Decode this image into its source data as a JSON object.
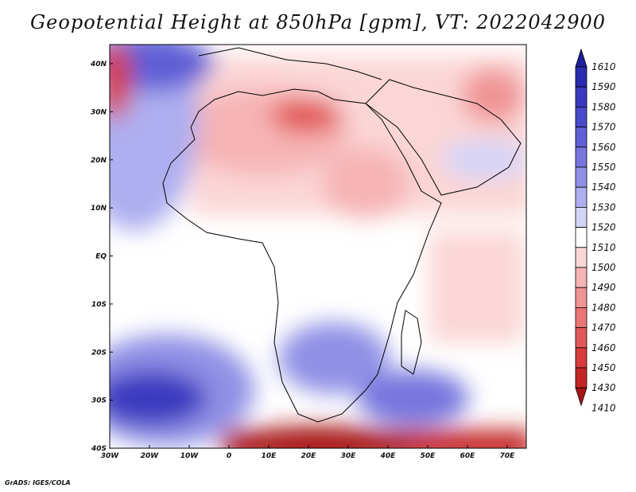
{
  "title": "Geopotential Height at 850hPa [gpm], VT: 2022042900",
  "credit": "GrADS: IGES/COLA",
  "map": {
    "lat_labels": [
      "40N",
      "30N",
      "20N",
      "10N",
      "EQ",
      "10S",
      "20S",
      "30S",
      "40S"
    ],
    "lon_labels": [
      "30W",
      "20W",
      "10W",
      "0",
      "10E",
      "20E",
      "30E",
      "40E",
      "50E",
      "60E",
      "70E"
    ],
    "lon_range": [
      -30,
      75
    ],
    "lat_range": [
      -40,
      45
    ]
  },
  "colorbar": {
    "levels": [
      "1610",
      "1590",
      "1580",
      "1570",
      "1560",
      "1550",
      "1540",
      "1530",
      "1520",
      "1510",
      "1500",
      "1490",
      "1480",
      "1470",
      "1460",
      "1450",
      "1430",
      "1410"
    ],
    "colors": [
      "#1e1e9e",
      "#2b2bb0",
      "#3a3ac0",
      "#4a4acc",
      "#5f5fd6",
      "#7676de",
      "#9090e6",
      "#aeaef0",
      "#d4d4f8",
      "#ffffff",
      "#fbd6d6",
      "#f6b4b4",
      "#f09494",
      "#ea7676",
      "#e25858",
      "#d83c3c",
      "#c42626",
      "#a81414"
    ]
  }
}
